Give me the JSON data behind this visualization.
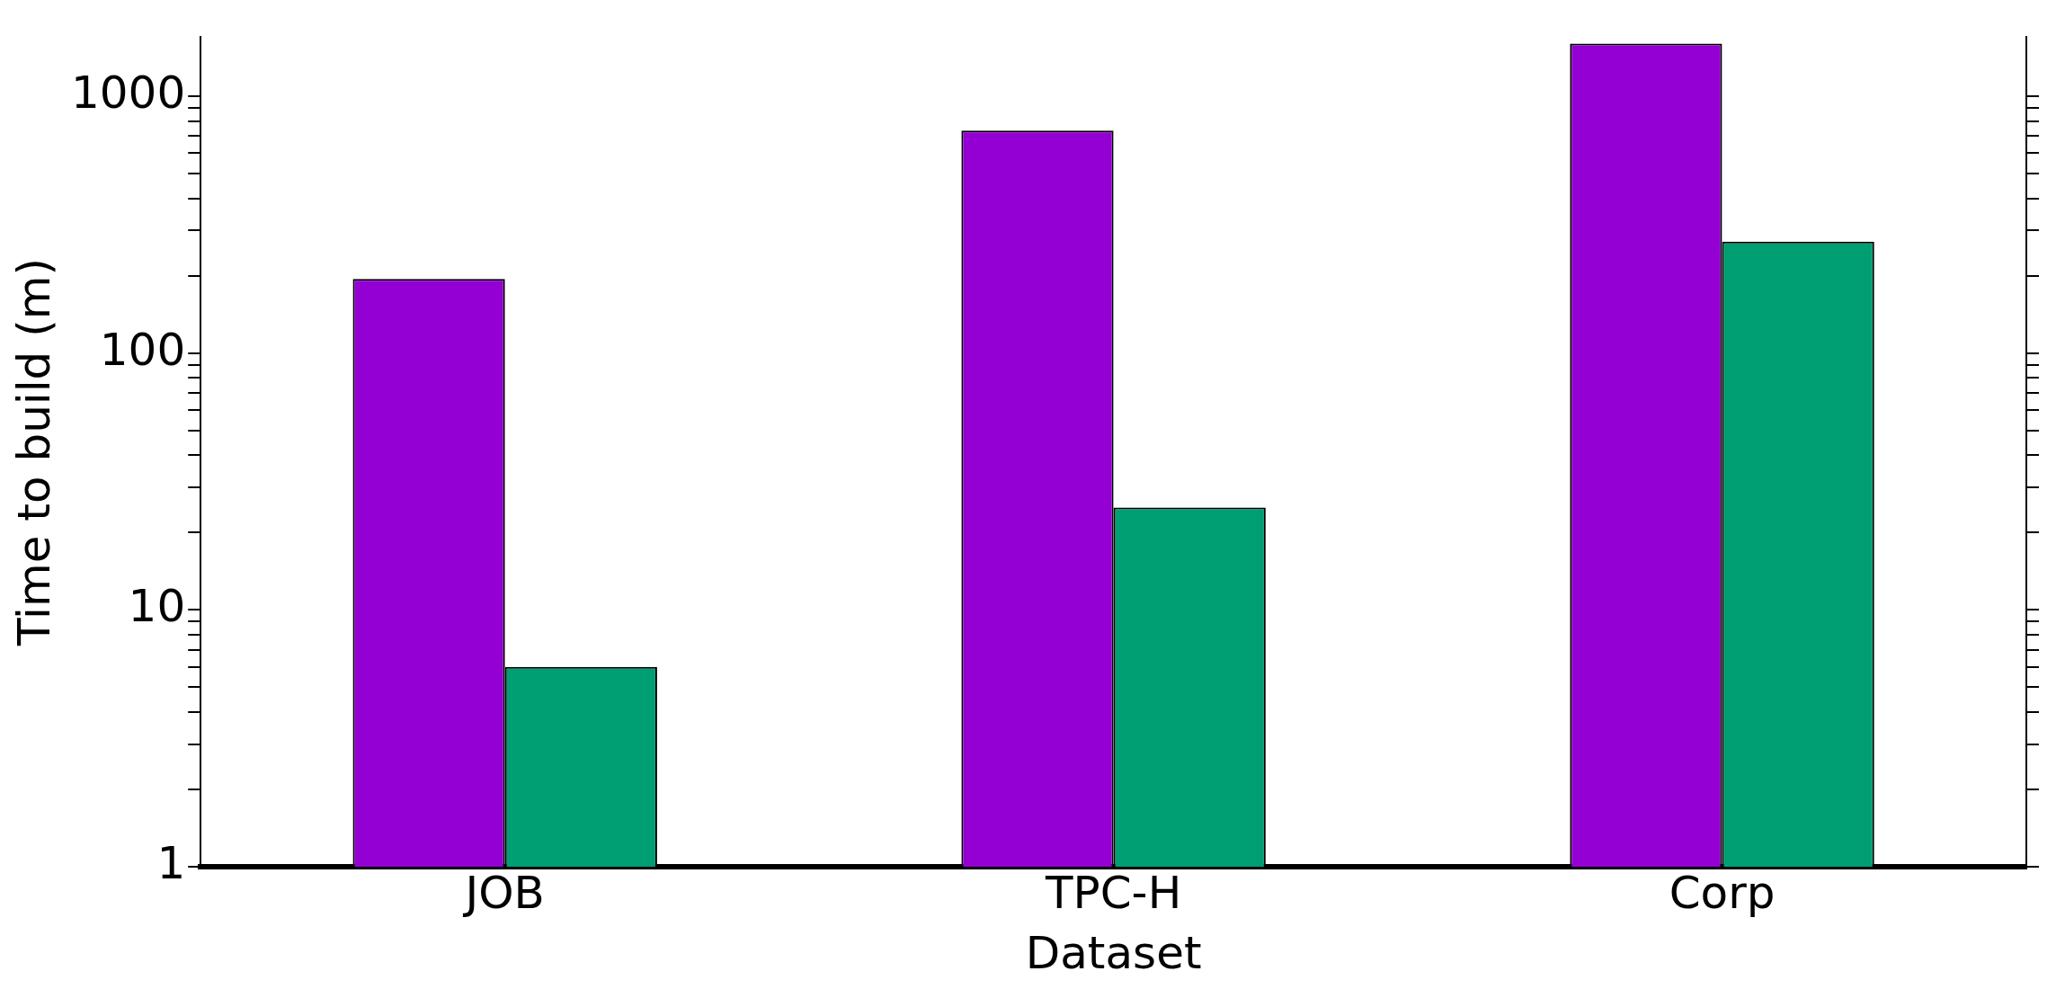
{
  "chart_data": {
    "type": "bar",
    "xlabel": "Dataset",
    "ylabel": "Time to build (m)",
    "categories": [
      "JOB",
      "TPC-H",
      "Corp"
    ],
    "series": [
      {
        "color": "#9400d3",
        "values": [
          194,
          734,
          1600
        ]
      },
      {
        "color": "#009e73",
        "values": [
          6,
          25,
          271
        ]
      }
    ],
    "log": "y",
    "ylim": [
      1,
      1700
    ],
    "yticks": [
      1,
      {
        "value": 2,
        "label": null
      },
      {
        "value": 3,
        "label": null
      },
      {
        "value": 4,
        "label": null
      },
      {
        "value": 5,
        "label": null
      },
      {
        "value": 6,
        "label": null
      },
      {
        "value": 7,
        "label": null
      },
      {
        "value": 8,
        "label": null
      },
      {
        "value": 9,
        "label": null
      },
      10,
      {
        "value": 20,
        "label": null
      },
      {
        "value": 30,
        "label": null
      },
      {
        "value": 40,
        "label": null
      },
      {
        "value": 50,
        "label": null
      },
      {
        "value": 60,
        "label": null
      },
      {
        "value": 70,
        "label": null
      },
      {
        "value": 80,
        "label": null
      },
      {
        "value": 90,
        "label": null
      },
      100,
      {
        "value": 200,
        "label": null
      },
      {
        "value": 300,
        "label": null
      },
      {
        "value": 400,
        "label": null
      },
      {
        "value": 500,
        "label": null
      },
      {
        "value": 600,
        "label": null
      },
      {
        "value": 700,
        "label": null
      },
      {
        "value": 800,
        "label": null
      },
      {
        "value": 900,
        "label": null
      },
      1000
    ],
    "grid": false,
    "legend": false
  }
}
